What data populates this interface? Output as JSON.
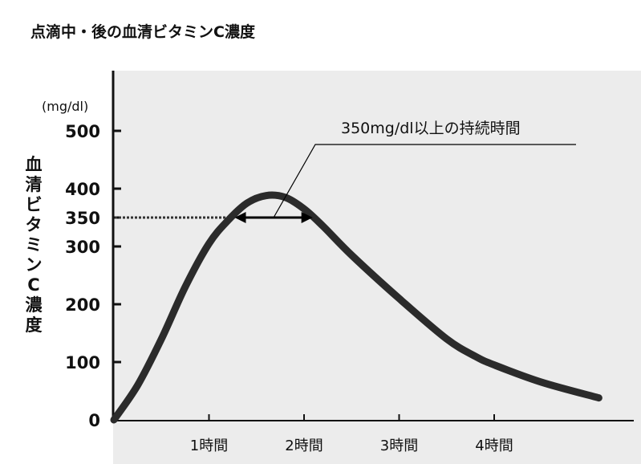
{
  "chart_data": {
    "type": "line",
    "title": "点滴中・後の血清ビタミンC濃度",
    "ylabel": "血清ビタミンC濃度",
    "yunit": "(mg/dl)",
    "xlabel": "",
    "ylim": [
      0,
      500
    ],
    "xlim": [
      0,
      5.5
    ],
    "yticks": [
      {
        "value": 0,
        "label": "0"
      },
      {
        "value": 100,
        "label": "100"
      },
      {
        "value": 200,
        "label": "200"
      },
      {
        "value": 300,
        "label": "300"
      },
      {
        "value": 350,
        "label": "350"
      },
      {
        "value": 400,
        "label": "400"
      },
      {
        "value": 500,
        "label": "500"
      }
    ],
    "xticks": [
      {
        "value": 1,
        "label": "1時間"
      },
      {
        "value": 2,
        "label": "2時間"
      },
      {
        "value": 3,
        "label": "3時間"
      },
      {
        "value": 4,
        "label": "4時間"
      }
    ],
    "series": [
      {
        "name": "血清ビタミンC濃度",
        "x": [
          0,
          0.25,
          0.5,
          0.75,
          1.0,
          1.2,
          1.4,
          1.6,
          1.8,
          2.0,
          2.2,
          2.5,
          3.0,
          3.5,
          3.8,
          4.0,
          4.5,
          5.1
        ],
        "y": [
          0,
          60,
          140,
          230,
          305,
          345,
          375,
          388,
          385,
          365,
          335,
          285,
          210,
          140,
          110,
          95,
          65,
          38
        ]
      }
    ],
    "reference_line": {
      "y": 350,
      "style": "dotted"
    },
    "annotation": {
      "text": "350mg/dl以上の持続時間",
      "x_start": 1.27,
      "x_end": 2.09,
      "y": 350
    },
    "grid": false,
    "colors": {
      "curve": "#2b2b2b",
      "background": "#ececec",
      "axis": "#111111"
    }
  }
}
